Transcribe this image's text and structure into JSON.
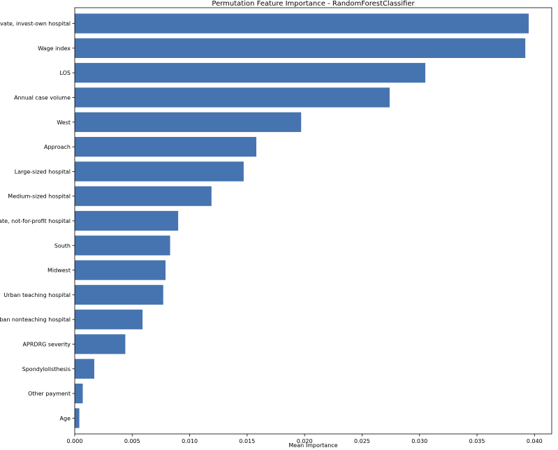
{
  "chart_data": {
    "type": "bar",
    "orientation": "horizontal",
    "title": "Permutation Feature Importance - RandomForestClassifier",
    "xlabel": "Mean Importance",
    "ylabel": "",
    "xlim": [
      0,
      0.0415
    ],
    "xticks": [
      0.0,
      0.005,
      0.01,
      0.015,
      0.02,
      0.025,
      0.03,
      0.035,
      0.04
    ],
    "xtick_labels": [
      "0.000",
      "0.005",
      "0.010",
      "0.015",
      "0.020",
      "0.025",
      "0.030",
      "0.035",
      "0.040"
    ],
    "grid": false,
    "bar_color": "#4674b0",
    "categories": [
      "Private, invest-own hospital",
      "Wage index",
      "LOS",
      "Annual case volume",
      "West",
      "Approach",
      "Large-sized hospital",
      "Medium-sized hospital",
      "Private, not-for-profit hospital",
      "South",
      "Midwest",
      "Urban teaching hospital",
      "Urban nonteaching hospital",
      "APRDRG severity",
      "Spondylolisthesis",
      "Other payment",
      "Age"
    ],
    "values": [
      0.0395,
      0.0392,
      0.0305,
      0.0274,
      0.0197,
      0.0158,
      0.0147,
      0.0119,
      0.009,
      0.0083,
      0.0079,
      0.0077,
      0.0059,
      0.0044,
      0.0017,
      0.0007,
      0.0004
    ]
  }
}
